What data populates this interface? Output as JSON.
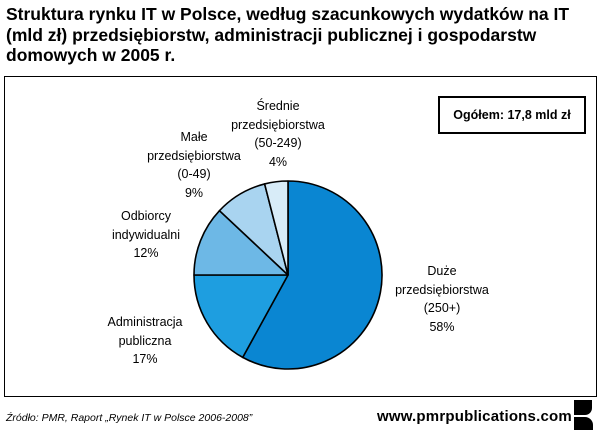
{
  "title": [
    "Struktura rynku IT w Polsce, według szacunkowych wydatków na IT",
    "(mld zł) przedsiębiorstw, administracji publicznej i gospodarstw",
    "domowych w 2005 r."
  ],
  "total_box": "Ogółem: 17,8 mld zł",
  "source": "Źródło: PMR, Raport „Rynek IT w Polsce 2006-2008”",
  "website": "www.pmrpublications.com",
  "colors": {
    "duze": "#0a86d2",
    "administracja": "#1e9ee0",
    "odbiorcy": "#6db8e6",
    "male": "#a9d4f0",
    "srednie": "#d8ecf8",
    "stroke": "#000000"
  },
  "chart_data": {
    "type": "pie",
    "title": "Struktura rynku IT w Polsce, według szacunkowych wydatków na IT (mld zł) przedsiębiorstw, administracji publicznej i gospodarstw domowych w 2005 r.",
    "total": "Ogółem: 17,8 mld zł",
    "slices": [
      {
        "key": "duze",
        "lines": [
          "Duże",
          "przedsiębiorstwa",
          "(250+)"
        ],
        "value": 58,
        "value_label": "58%"
      },
      {
        "key": "administracja",
        "lines": [
          "Administracja",
          "publiczna"
        ],
        "value": 17,
        "value_label": "17%"
      },
      {
        "key": "odbiorcy",
        "lines": [
          "Odbiorcy",
          "indywidualni"
        ],
        "value": 12,
        "value_label": "12%"
      },
      {
        "key": "male",
        "lines": [
          "Małe",
          "przedsiębiorstwa",
          "(0-49)"
        ],
        "value": 9,
        "value_label": "9%"
      },
      {
        "key": "srednie",
        "lines": [
          "Średnie",
          "przedsiębiorstwa",
          "(50-249)"
        ],
        "value": 4,
        "value_label": "4%"
      }
    ]
  }
}
